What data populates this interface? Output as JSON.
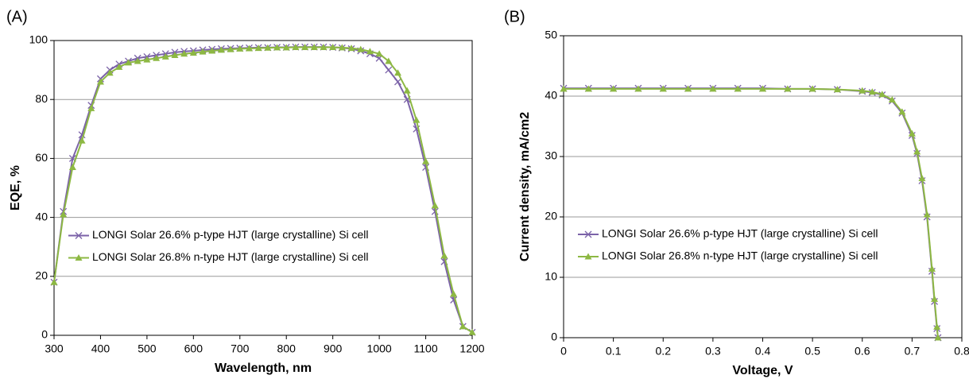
{
  "chart_data": [
    {
      "type": "line",
      "label": "(A)",
      "xlabel": "Wavelength, nm",
      "ylabel": "EQE, %",
      "xlim": [
        300,
        1200
      ],
      "xticks": [
        300,
        400,
        500,
        600,
        700,
        800,
        900,
        1000,
        1100,
        1200
      ],
      "ylim": [
        0,
        100
      ],
      "yticks": [
        0,
        20,
        40,
        60,
        80,
        100
      ],
      "grid": true,
      "legend": "center left",
      "x": [
        300,
        320,
        340,
        360,
        380,
        400,
        420,
        440,
        460,
        480,
        500,
        520,
        540,
        560,
        580,
        600,
        620,
        640,
        660,
        680,
        700,
        720,
        740,
        760,
        780,
        800,
        820,
        840,
        860,
        880,
        900,
        920,
        940,
        960,
        980,
        1000,
        1020,
        1040,
        1060,
        1080,
        1100,
        1120,
        1140,
        1160,
        1180,
        1200
      ],
      "series": [
        {
          "name": "LONGI Solar 26.6% p-type HJT (large crystalline) Si cell",
          "color": "#7b62a8",
          "marker": "x",
          "values": [
            18,
            42,
            60,
            68,
            78,
            87,
            90,
            92,
            93,
            94,
            94.5,
            95,
            95.5,
            96,
            96.3,
            96.5,
            96.8,
            97,
            97.2,
            97.3,
            97.4,
            97.5,
            97.6,
            97.6,
            97.7,
            97.7,
            97.8,
            97.8,
            97.8,
            97.8,
            97.7,
            97.5,
            97.2,
            96.5,
            95.5,
            94,
            90,
            86,
            80,
            70,
            57,
            42,
            25,
            12,
            3,
            1
          ]
        },
        {
          "name": "LONGI Solar 26.8% n-type HJT (large crystalline) Si cell",
          "color": "#8db843",
          "marker": "triangle",
          "values": [
            18,
            41,
            57,
            66,
            77,
            86,
            89,
            91,
            92.5,
            93,
            93.5,
            94,
            94.5,
            95,
            95.5,
            95.8,
            96.2,
            96.5,
            96.8,
            97,
            97.2,
            97.3,
            97.4,
            97.5,
            97.6,
            97.6,
            97.7,
            97.7,
            97.7,
            97.7,
            97.7,
            97.6,
            97.4,
            97,
            96.3,
            95.5,
            93,
            89,
            83,
            73,
            59,
            44,
            27,
            14,
            3,
            1
          ]
        }
      ]
    },
    {
      "type": "line",
      "label": "(B)",
      "xlabel": "Voltage, V",
      "ylabel": "Current density, mA/cm2",
      "xlim": [
        0,
        0.8
      ],
      "xticks": [
        0,
        0.1,
        0.2,
        0.3,
        0.4,
        0.5,
        0.6,
        0.7,
        0.8
      ],
      "ylim": [
        0,
        50
      ],
      "yticks": [
        0,
        10,
        20,
        30,
        40,
        50
      ],
      "grid": true,
      "legend": "center left",
      "x": [
        0,
        0.05,
        0.1,
        0.15,
        0.2,
        0.25,
        0.3,
        0.35,
        0.4,
        0.45,
        0.5,
        0.55,
        0.6,
        0.62,
        0.64,
        0.66,
        0.68,
        0.7,
        0.71,
        0.72,
        0.73,
        0.74,
        0.745,
        0.75,
        0.752
      ],
      "series": [
        {
          "name": "LONGI Solar 26.6% p-type HJT (large crystalline) Si cell",
          "color": "#7b62a8",
          "marker": "x",
          "values": [
            41.3,
            41.3,
            41.3,
            41.3,
            41.3,
            41.3,
            41.3,
            41.3,
            41.3,
            41.2,
            41.2,
            41.1,
            40.8,
            40.6,
            40.2,
            39.2,
            37.2,
            33.5,
            30.5,
            26,
            20,
            11,
            6,
            1.5,
            0
          ]
        },
        {
          "name": "LONGI Solar 26.8% n-type HJT (large crystalline) Si cell",
          "color": "#8db843",
          "marker": "triangle",
          "values": [
            41.2,
            41.2,
            41.2,
            41.2,
            41.2,
            41.2,
            41.2,
            41.2,
            41.2,
            41.2,
            41.2,
            41.1,
            40.9,
            40.7,
            40.3,
            39.4,
            37.4,
            33.8,
            30.8,
            26.4,
            20.4,
            11.4,
            6.4,
            1.8,
            0
          ]
        }
      ]
    }
  ]
}
